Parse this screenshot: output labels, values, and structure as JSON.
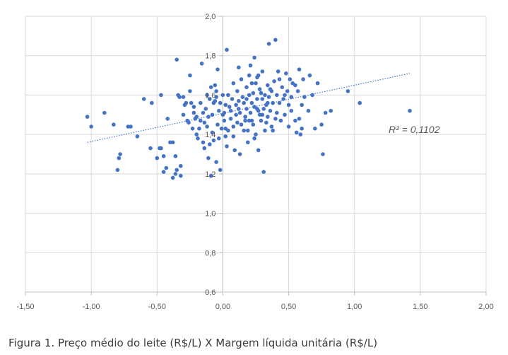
{
  "caption": "Figura 1. Preço médio do leite (R$/L) X Margem líquida unitária (R$/L)",
  "chart_data": {
    "type": "scatter",
    "title": "",
    "xlabel": "",
    "ylabel": "",
    "xlim": [
      -1.5,
      2.0
    ],
    "ylim": [
      0.6,
      2.0
    ],
    "x_ticks": [
      "-1,50",
      "-1,00",
      "-0,50",
      "0,00",
      "0,50",
      "1,00",
      "1,50",
      "2,00"
    ],
    "y_ticks": [
      "0,6",
      "0,8",
      "1,0",
      "1,2",
      "1,4",
      "1,6",
      "1,8",
      "2,0"
    ],
    "grid": true,
    "marker_color": "#4472c4",
    "trendline": {
      "type": "linear",
      "label": "R² = 0,1102",
      "x_range": [
        -1.03,
        1.42
      ],
      "y_at_start": 1.36,
      "y_at_end": 1.71,
      "color": "#4472c4",
      "style": "dotted"
    },
    "points": [
      [
        -1.03,
        1.49
      ],
      [
        -1.0,
        1.44
      ],
      [
        -0.9,
        1.51
      ],
      [
        -0.83,
        1.45
      ],
      [
        -0.78,
        1.3
      ],
      [
        -0.79,
        1.28
      ],
      [
        -0.8,
        1.22
      ],
      [
        -0.72,
        1.44
      ],
      [
        -0.7,
        1.44
      ],
      [
        -0.65,
        1.39
      ],
      [
        -0.54,
        1.56
      ],
      [
        -0.48,
        1.33
      ],
      [
        -0.47,
        1.33
      ],
      [
        -0.47,
        1.6
      ],
      [
        -0.45,
        1.29
      ],
      [
        -0.45,
        1.21
      ],
      [
        -0.43,
        1.23
      ],
      [
        -0.42,
        1.48
      ],
      [
        -0.4,
        1.36
      ],
      [
        -0.38,
        1.36
      ],
      [
        -0.38,
        1.18
      ],
      [
        -0.36,
        1.2
      ],
      [
        -0.36,
        1.29
      ],
      [
        -0.35,
        1.22
      ],
      [
        -0.35,
        1.78
      ],
      [
        -0.34,
        1.6
      ],
      [
        -0.33,
        1.59
      ],
      [
        -0.32,
        1.24
      ],
      [
        -0.32,
        1.19
      ],
      [
        -0.3,
        1.5
      ],
      [
        -0.3,
        1.59
      ],
      [
        -0.29,
        1.55
      ],
      [
        -0.28,
        1.56
      ],
      [
        -0.27,
        1.47
      ],
      [
        -0.26,
        1.46
      ],
      [
        -0.25,
        1.62
      ],
      [
        -0.24,
        1.56
      ],
      [
        -0.23,
        1.43
      ],
      [
        -0.22,
        1.54
      ],
      [
        -0.21,
        1.48
      ],
      [
        -0.2,
        1.49
      ],
      [
        -0.2,
        1.4
      ],
      [
        -0.19,
        1.38
      ],
      [
        -0.18,
        1.43
      ],
      [
        -0.17,
        1.56
      ],
      [
        -0.17,
        1.47
      ],
      [
        -0.16,
        1.76
      ],
      [
        -0.15,
        1.51
      ],
      [
        -0.14,
        1.46
      ],
      [
        -0.14,
        1.33
      ],
      [
        -0.13,
        1.53
      ],
      [
        -0.12,
        1.44
      ],
      [
        -0.12,
        1.6
      ],
      [
        -0.11,
        1.49
      ],
      [
        -0.1,
        1.58
      ],
      [
        -0.1,
        1.35
      ],
      [
        -0.09,
        1.19
      ],
      [
        -0.09,
        1.64
      ],
      [
        -0.08,
        1.5
      ],
      [
        -0.08,
        1.41
      ],
      [
        -0.07,
        1.56
      ],
      [
        -0.07,
        1.37
      ],
      [
        -0.06,
        1.57
      ],
      [
        -0.06,
        1.65
      ],
      [
        -0.05,
        1.59
      ],
      [
        -0.05,
        1.62
      ],
      [
        -0.04,
        1.45
      ],
      [
        -0.04,
        1.73
      ],
      [
        -0.03,
        1.38
      ],
      [
        -0.03,
        1.52
      ],
      [
        -0.02,
        1.22
      ],
      [
        -0.02,
        1.56
      ],
      [
        -0.01,
        1.43
      ],
      [
        0.0,
        1.5
      ],
      [
        0.0,
        1.6
      ],
      [
        0.01,
        1.51
      ],
      [
        0.01,
        1.47
      ],
      [
        0.02,
        1.43
      ],
      [
        0.02,
        1.39
      ],
      [
        0.02,
        1.55
      ],
      [
        0.03,
        1.34
      ],
      [
        0.03,
        1.83
      ],
      [
        0.04,
        1.6
      ],
      [
        0.04,
        1.42
      ],
      [
        0.05,
        1.54
      ],
      [
        0.06,
        1.52
      ],
      [
        0.06,
        1.48
      ],
      [
        0.07,
        1.58
      ],
      [
        0.08,
        1.39
      ],
      [
        0.08,
        1.44
      ],
      [
        0.09,
        1.32
      ],
      [
        0.1,
        1.55
      ],
      [
        0.1,
        1.5
      ],
      [
        0.11,
        1.46
      ],
      [
        0.11,
        1.62
      ],
      [
        0.12,
        1.57
      ],
      [
        0.13,
        1.51
      ],
      [
        0.13,
        1.3
      ],
      [
        0.14,
        1.45
      ],
      [
        0.14,
        1.68
      ],
      [
        0.15,
        1.59
      ],
      [
        0.16,
        1.56
      ],
      [
        0.17,
        1.49
      ],
      [
        0.17,
        1.47
      ],
      [
        0.18,
        1.64
      ],
      [
        0.18,
        1.53
      ],
      [
        0.19,
        1.42
      ],
      [
        0.19,
        1.36
      ],
      [
        0.2,
        1.6
      ],
      [
        0.2,
        1.7
      ],
      [
        0.21,
        1.51
      ],
      [
        0.21,
        1.75
      ],
      [
        0.22,
        1.56
      ],
      [
        0.22,
        1.47
      ],
      [
        0.23,
        1.45
      ],
      [
        0.23,
        1.61
      ],
      [
        0.24,
        1.79
      ],
      [
        0.24,
        1.54
      ],
      [
        0.25,
        1.4
      ],
      [
        0.25,
        1.66
      ],
      [
        0.26,
        1.58
      ],
      [
        0.26,
        1.69
      ],
      [
        0.27,
        1.52
      ],
      [
        0.27,
        1.32
      ],
      [
        0.28,
        1.63
      ],
      [
        0.28,
        1.5
      ],
      [
        0.29,
        1.47
      ],
      [
        0.3,
        1.58
      ],
      [
        0.3,
        1.72
      ],
      [
        0.31,
        1.53
      ],
      [
        0.31,
        1.21
      ],
      [
        0.32,
        1.6
      ],
      [
        0.32,
        1.42
      ],
      [
        0.33,
        1.55
      ],
      [
        0.34,
        1.65
      ],
      [
        0.34,
        1.49
      ],
      [
        0.35,
        1.59
      ],
      [
        0.35,
        1.86
      ],
      [
        0.36,
        1.52
      ],
      [
        0.37,
        1.62
      ],
      [
        0.37,
        1.44
      ],
      [
        0.38,
        1.56
      ],
      [
        0.39,
        1.67
      ],
      [
        0.4,
        1.88
      ],
      [
        0.41,
        1.6
      ],
      [
        0.41,
        1.51
      ],
      [
        0.42,
        1.72
      ],
      [
        0.43,
        1.56
      ],
      [
        0.44,
        1.47
      ],
      [
        0.45,
        1.64
      ],
      [
        0.46,
        1.58
      ],
      [
        0.47,
        1.5
      ],
      [
        0.48,
        1.71
      ],
      [
        0.49,
        1.62
      ],
      [
        0.5,
        1.44
      ],
      [
        0.5,
        1.55
      ],
      [
        0.51,
        1.68
      ],
      [
        0.52,
        1.59
      ],
      [
        0.53,
        1.66
      ],
      [
        0.55,
        1.47
      ],
      [
        0.56,
        1.41
      ],
      [
        0.57,
        1.62
      ],
      [
        0.58,
        1.73
      ],
      [
        0.59,
        1.4
      ],
      [
        0.6,
        1.55
      ],
      [
        0.6,
        1.43
      ],
      [
        0.61,
        1.68
      ],
      [
        0.62,
        1.59
      ],
      [
        0.65,
        1.52
      ],
      [
        0.66,
        1.7
      ],
      [
        0.68,
        1.6
      ],
      [
        0.7,
        1.43
      ],
      [
        0.72,
        1.66
      ],
      [
        0.75,
        1.45
      ],
      [
        0.76,
        1.3
      ],
      [
        0.78,
        1.51
      ],
      [
        0.82,
        1.52
      ],
      [
        0.95,
        1.62
      ],
      [
        1.04,
        1.56
      ],
      [
        1.42,
        1.52
      ],
      [
        -0.6,
        1.58
      ],
      [
        -0.55,
        1.33
      ],
      [
        -0.5,
        1.28
      ],
      [
        -0.25,
        1.7
      ],
      [
        -0.22,
        1.51
      ],
      [
        -0.15,
        1.36
      ],
      [
        -0.11,
        1.28
      ],
      [
        -0.05,
        1.26
      ],
      [
        0.08,
        1.66
      ],
      [
        0.12,
        1.74
      ],
      [
        0.16,
        1.42
      ],
      [
        0.2,
        1.47
      ],
      [
        0.24,
        1.38
      ],
      [
        0.27,
        1.7
      ],
      [
        0.29,
        1.61
      ],
      [
        0.33,
        1.46
      ],
      [
        0.36,
        1.63
      ],
      [
        0.38,
        1.42
      ],
      [
        0.43,
        1.68
      ],
      [
        0.47,
        1.6
      ],
      [
        0.52,
        1.52
      ],
      [
        0.55,
        1.65
      ],
      [
        0.58,
        1.48
      ],
      [
        0.12,
        1.53
      ],
      [
        0.18,
        1.58
      ],
      [
        0.22,
        1.66
      ],
      [
        0.26,
        1.53
      ],
      [
        0.3,
        1.5
      ],
      [
        0.34,
        1.56
      ],
      [
        0.4,
        1.48
      ]
    ]
  }
}
